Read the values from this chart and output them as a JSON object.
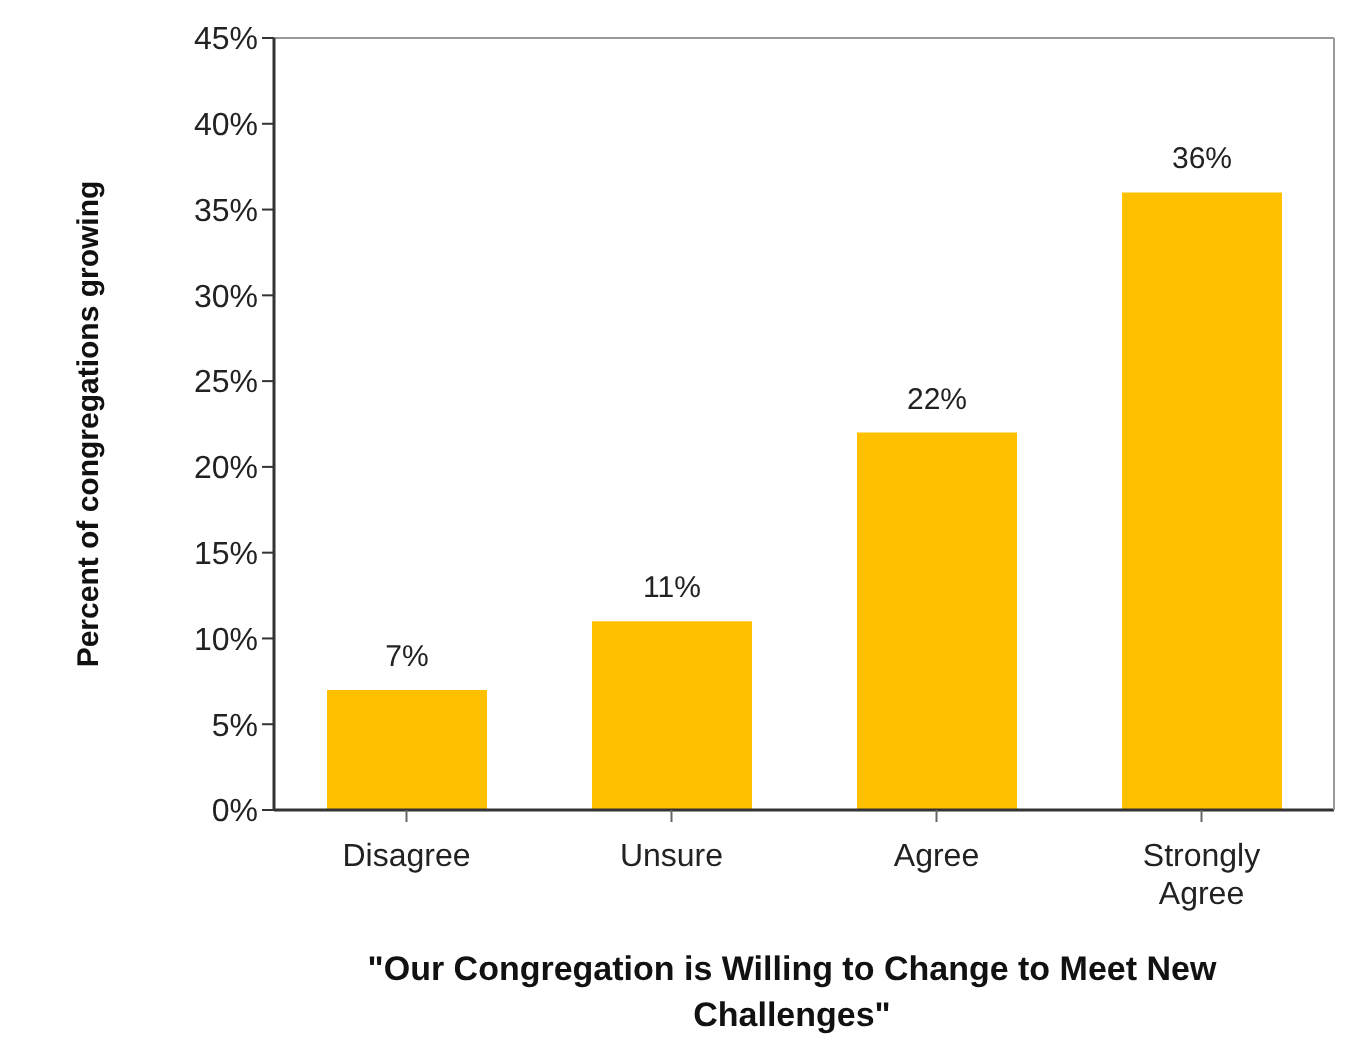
{
  "chart_data": {
    "type": "bar",
    "xlabel": "\"Our Congregation is Willing to Change to Meet New Challenges\"",
    "ylabel": "Percent of congregations growing",
    "categories": [
      "Disagree",
      "Unsure",
      "Agree",
      "Strongly Agree"
    ],
    "values": [
      7,
      11,
      22,
      36
    ],
    "color": "#ffc000",
    "value_labels": [
      "7%",
      "11%",
      "22%",
      "36%"
    ],
    "ylim": [
      0,
      45
    ],
    "yticks": [
      {
        "value": 0,
        "label": "0%"
      },
      {
        "value": 5,
        "label": "5%"
      },
      {
        "value": 10,
        "label": "10%"
      },
      {
        "value": 15,
        "label": "15%"
      },
      {
        "value": 20,
        "label": "20%"
      },
      {
        "value": 25,
        "label": "25%"
      },
      {
        "value": 30,
        "label": "30%"
      },
      {
        "value": 35,
        "label": "35%"
      },
      {
        "value": 40,
        "label": "40%"
      },
      {
        "value": 45,
        "label": "45%"
      }
    ]
  }
}
